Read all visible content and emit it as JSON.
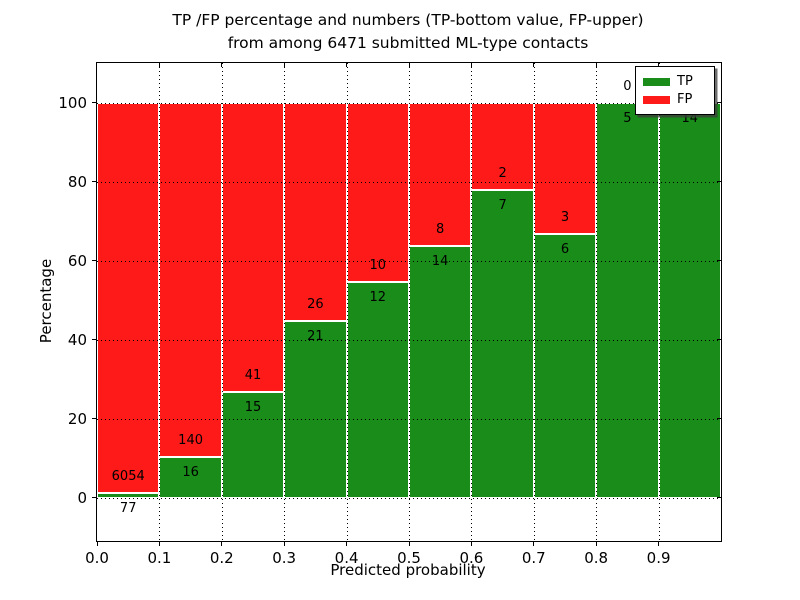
{
  "chart": {
    "title_line1": "TP /FP percentage and numbers (TP-bottom value, FP-upper)",
    "title_line2": "from among 6471 submitted ML-type contacts",
    "xlabel": "Predicted probability",
    "ylabel": "Percentage",
    "legend": [
      {
        "label": "TP",
        "color": "#1a8c1a"
      },
      {
        "label": "FP",
        "color": "#ff1a1a"
      }
    ]
  },
  "chart_data": {
    "type": "bar",
    "stacked": true,
    "normalized_to_percent": true,
    "title": "TP /FP percentage and numbers (TP-bottom value, FP-upper) from among 6471 submitted ML-type contacts",
    "xlabel": "Predicted probability",
    "ylabel": "Percentage",
    "total_contacts": 6471,
    "bins": [
      [
        0.0,
        0.1
      ],
      [
        0.1,
        0.2
      ],
      [
        0.2,
        0.3
      ],
      [
        0.3,
        0.4
      ],
      [
        0.4,
        0.5
      ],
      [
        0.5,
        0.6
      ],
      [
        0.6,
        0.7
      ],
      [
        0.7,
        0.8
      ],
      [
        0.8,
        0.9
      ],
      [
        0.9,
        1.0
      ]
    ],
    "series": [
      {
        "name": "TP",
        "position": "bottom",
        "color": "#1a8c1a",
        "counts": [
          77,
          16,
          15,
          21,
          12,
          14,
          7,
          6,
          5,
          14
        ]
      },
      {
        "name": "FP",
        "position": "top",
        "color": "#ff1a1a",
        "counts": [
          6054,
          140,
          41,
          26,
          10,
          8,
          2,
          3,
          0,
          0
        ]
      }
    ],
    "tp_percent": [
      1.26,
      10.26,
      26.79,
      44.68,
      54.55,
      63.64,
      77.78,
      66.67,
      100.0,
      100.0
    ],
    "xlim": [
      0.0,
      1.0
    ],
    "ylim": [
      -11,
      110
    ],
    "xticks": [
      "0.0",
      "0.1",
      "0.2",
      "0.3",
      "0.4",
      "0.5",
      "0.6",
      "0.7",
      "0.8",
      "0.9"
    ],
    "yticks": [
      0,
      20,
      40,
      60,
      80,
      100
    ],
    "grid": "dotted, both axes, drawn over bars",
    "bar_edge_color": "#ffffff",
    "legend_position": "upper right",
    "note_hidden_label": "FP label of last bar is covered by the legend box"
  }
}
